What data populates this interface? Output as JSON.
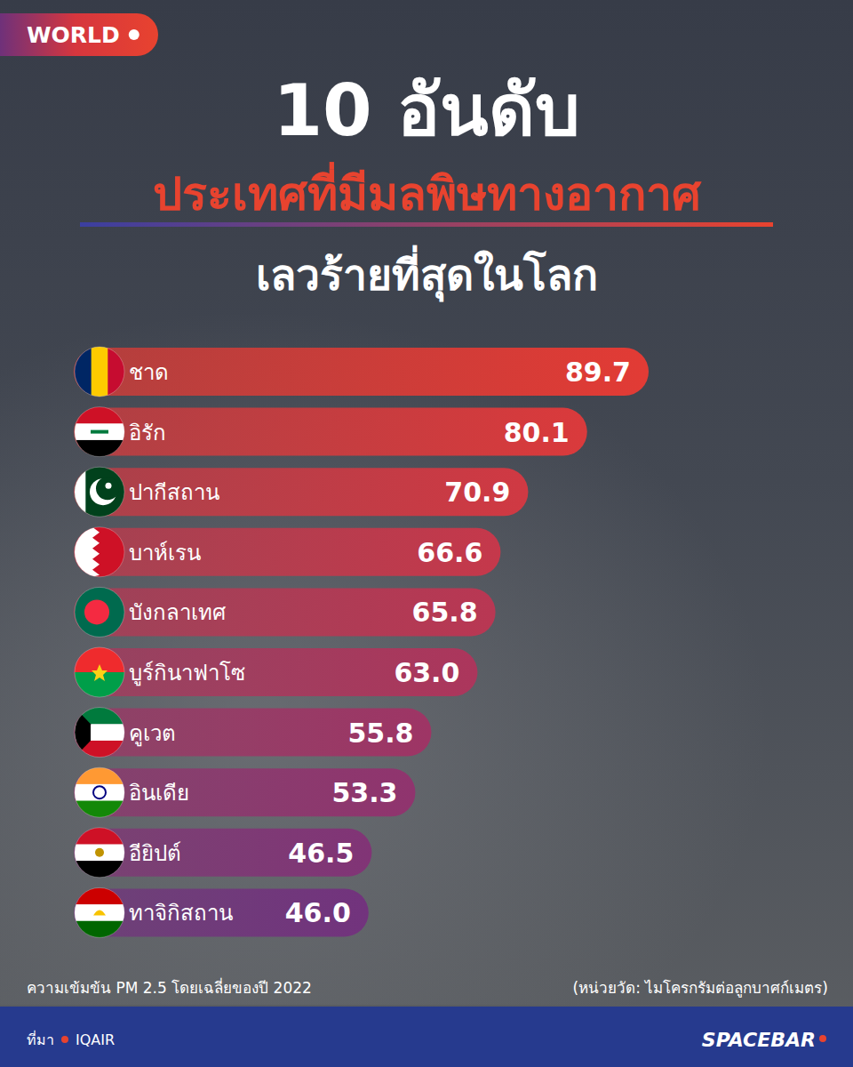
{
  "chart_data": {
    "type": "bar",
    "orientation": "horizontal",
    "title": "10 อันดับ",
    "subtitle": [
      "ประเทศที่มีมลพิษทางอากาศ",
      "เลวร้ายที่สุดในโลก"
    ],
    "categories": [
      "ชาด",
      "อิรัก",
      "ปากีสถาน",
      "บาห์เรน",
      "บังกลาเทศ",
      "บูร์กินาฟาโซ",
      "คูเวต",
      "อินเดีย",
      "อียิปต์",
      "ทาจิกิสถาน"
    ],
    "values": [
      89.7,
      80.1,
      70.9,
      66.6,
      65.8,
      63.0,
      55.8,
      53.3,
      46.5,
      46.0
    ],
    "value_labels": [
      "89.7",
      "80.1",
      "70.9",
      "66.6",
      "65.8",
      "63.0",
      "55.8",
      "53.3",
      "46.5",
      "46.0"
    ],
    "colors": [
      "#e23b35",
      "#da3a3c",
      "#d03943",
      "#c5384b",
      "#b93753",
      "#ac365c",
      "#9e3565",
      "#90346e",
      "#813476",
      "#72337d"
    ],
    "xlim": [
      0,
      89.7
    ],
    "data_labels": true,
    "tick_labels": false,
    "annotations": {
      "badge": "WORLD",
      "note": "ความเข้มข้น PM 2.5 โดยเฉลี่ยของปี 2022",
      "unit_note": "(หน่วยวัด: ไมโครกรัมต่อลูกบาศก์เมตร)",
      "source_label": "ที่มา",
      "source": "IQAIR",
      "brand": "SPACEBAR"
    }
  }
}
